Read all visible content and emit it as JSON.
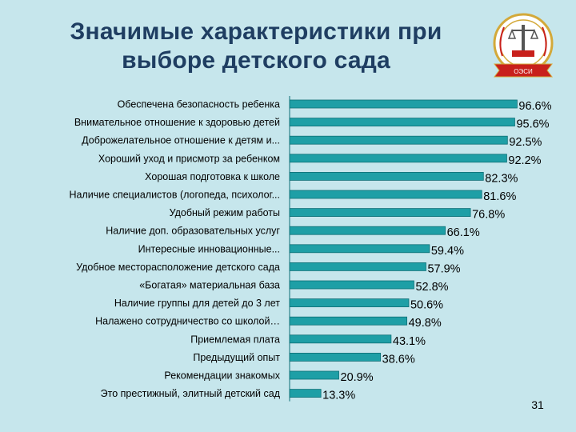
{
  "slide": {
    "title": "Значимые характеристики при выборе детского сада",
    "page_number": "31"
  },
  "colors": {
    "background": "#c6e6ec",
    "bar": "#1e9fa6",
    "bar_edge": "#0d6f76",
    "title": "#1f3e62",
    "logo_red": "#c8201c",
    "logo_gold": "#d3a93a"
  },
  "logo": {
    "icon": "justice-emblem-icon",
    "banner_text": "ОЭСИ"
  },
  "chart_data": {
    "type": "bar",
    "orientation": "horizontal",
    "title": "",
    "xlabel": "",
    "ylabel": "",
    "xlim": [
      0,
      100
    ],
    "grid": false,
    "legend": "none",
    "categories": [
      "Обеспечена безопасность ребенка",
      "Внимательное отношение к здоровью детей",
      "Доброжелательное отношение к детям и...",
      "Хороший уход и присмотр за ребенком",
      "Хорошая подготовка к школе",
      "Наличие  специалистов (логопеда, психолог...",
      "Удобный режим работы",
      "Наличие доп. образовательных услуг",
      "Интересные инновационные...",
      "Удобное месторасположение детского сада",
      "«Богатая» материальная база",
      "Наличие группы для детей до 3 лет",
      "Налажено сотрудничество со школой…",
      "Приемлемая плата",
      "Предыдущий опыт",
      "Рекомендации знакомых",
      "Это престижный, элитный детский сад"
    ],
    "values": [
      96.6,
      95.6,
      92.5,
      92.2,
      82.3,
      81.6,
      76.8,
      66.1,
      59.4,
      57.9,
      52.8,
      50.6,
      49.8,
      43.1,
      38.6,
      20.9,
      13.3
    ],
    "value_labels": [
      "96.6%",
      "95.6%",
      "92.5%",
      "92.2%",
      "82.3%",
      "81.6%",
      "76.8%",
      "66.1%",
      "59.4%",
      "57.9%",
      "52.8%",
      "50.6%",
      "49.8%",
      "43.1%",
      "38.6%",
      "20.9%",
      "13.3%"
    ]
  }
}
